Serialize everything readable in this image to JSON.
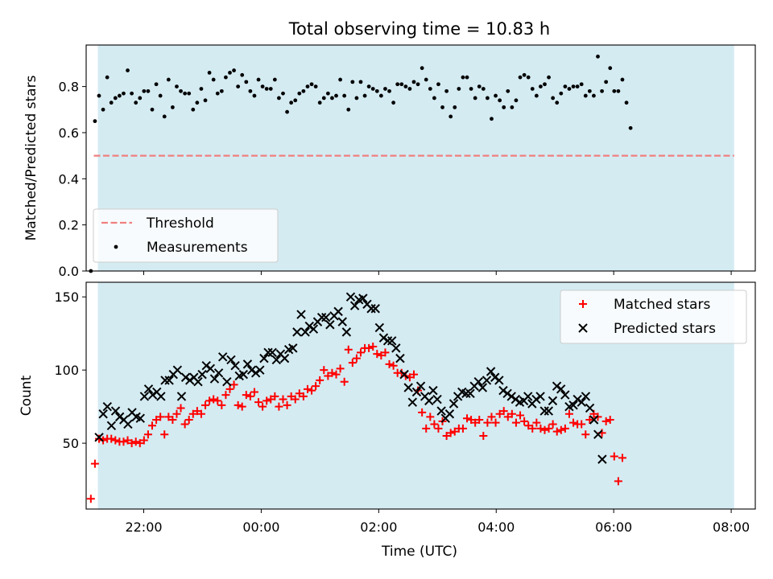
{
  "title": "Total observing time = 10.83 h",
  "xlabel": "Time (UTC)",
  "colors": {
    "band": "#add8e6",
    "threshold": "#f08080",
    "measurements": "#000000",
    "matched": "#ff0000",
    "predicted": "#000000"
  },
  "chart_data": [
    {
      "type": "scatter",
      "ylabel": "Matched/Predicted stars",
      "ylim": [
        0,
        0.98
      ],
      "yticks": [
        0.0,
        0.2,
        0.4,
        0.6,
        0.8
      ],
      "ytick_labels": [
        "0.0",
        "0.2",
        "0.4",
        "0.6",
        "0.8"
      ],
      "xlim_hours": [
        -2.98,
        8.41
      ],
      "xticks_hours": [
        -2,
        0,
        2,
        4,
        6,
        8
      ],
      "xtick_labels": [
        "22:00",
        "00:00",
        "02:00",
        "04:00",
        "06:00",
        "08:00"
      ],
      "observing_window_hours": [
        -2.78,
        8.05
      ],
      "grid": false,
      "legend": {
        "position": "lower-left",
        "entries": [
          "Threshold",
          "Measurements"
        ]
      },
      "threshold": {
        "name": "Threshold",
        "value": 0.5,
        "style": "dashed"
      },
      "series": [
        {
          "name": "Measurements",
          "x_start_hour": -2.9,
          "x_step_hour": 0.0696,
          "values": [
            0.0,
            0.65,
            0.76,
            0.7,
            0.84,
            0.73,
            0.75,
            0.76,
            0.77,
            0.87,
            0.77,
            0.73,
            0.75,
            0.78,
            0.78,
            0.7,
            0.81,
            0.76,
            0.67,
            0.83,
            0.71,
            0.8,
            0.78,
            0.77,
            0.77,
            0.7,
            0.73,
            0.79,
            0.74,
            0.86,
            0.83,
            0.77,
            0.78,
            0.84,
            0.86,
            0.87,
            0.8,
            0.85,
            0.82,
            0.78,
            0.76,
            0.83,
            0.8,
            0.79,
            0.79,
            0.83,
            0.75,
            0.77,
            0.69,
            0.73,
            0.74,
            0.77,
            0.78,
            0.8,
            0.81,
            0.8,
            0.73,
            0.75,
            0.77,
            0.75,
            0.76,
            0.83,
            0.76,
            0.7,
            0.82,
            0.75,
            0.82,
            0.76,
            0.8,
            0.79,
            0.78,
            0.76,
            0.79,
            0.78,
            0.73,
            0.81,
            0.81,
            0.8,
            0.79,
            0.82,
            0.81,
            0.88,
            0.83,
            0.79,
            0.75,
            0.81,
            0.71,
            0.78,
            0.67,
            0.71,
            0.79,
            0.84,
            0.84,
            0.79,
            0.75,
            0.8,
            0.79,
            0.75,
            0.66,
            0.76,
            0.74,
            0.71,
            0.78,
            0.71,
            0.74,
            0.84,
            0.85,
            0.84,
            0.79,
            0.76,
            0.8,
            0.81,
            0.84,
            0.75,
            0.73,
            0.77,
            0.8,
            0.79,
            0.8,
            0.8,
            0.81,
            0.76,
            0.78,
            0.76,
            0.93,
            0.78,
            0.82,
            0.88,
            0.78,
            0.78,
            0.83,
            0.73,
            0.62
          ]
        }
      ]
    },
    {
      "type": "scatter",
      "ylabel": "Count",
      "ylim": [
        5,
        160
      ],
      "yticks": [
        50,
        100,
        150
      ],
      "ytick_labels": [
        "50",
        "100",
        "150"
      ],
      "xlim_hours": [
        -2.98,
        8.41
      ],
      "xticks_hours": [
        -2,
        0,
        2,
        4,
        6,
        8
      ],
      "xtick_labels": [
        "22:00",
        "00:00",
        "02:00",
        "04:00",
        "06:00",
        "08:00"
      ],
      "observing_window_hours": [
        -2.78,
        8.05
      ],
      "grid": false,
      "legend": {
        "position": "top-right",
        "entries": [
          "Matched stars",
          "Predicted stars"
        ]
      },
      "series": [
        {
          "name": "Matched stars",
          "marker": "plus",
          "x_start_hour": -2.9,
          "x_step_hour": 0.0696,
          "values": [
            12,
            36,
            53,
            52,
            53,
            53,
            52,
            51,
            51,
            52,
            50,
            51,
            50,
            52,
            56,
            62,
            66,
            68,
            56,
            68,
            66,
            70,
            74,
            63,
            66,
            70,
            72,
            70,
            76,
            79,
            80,
            79,
            76,
            83,
            87,
            90,
            76,
            75,
            83,
            82,
            85,
            78,
            75,
            79,
            80,
            82,
            75,
            80,
            76,
            82,
            80,
            84,
            82,
            87,
            86,
            89,
            93,
            100,
            96,
            98,
            97,
            101,
            92,
            114,
            105,
            108,
            112,
            115,
            115,
            116,
            111,
            110,
            112,
            104,
            103,
            98,
            98,
            96,
            95,
            97,
            86,
            71,
            60,
            68,
            63,
            60,
            65,
            55,
            57,
            58,
            60,
            60,
            67,
            66,
            64,
            66,
            55,
            64,
            68,
            64,
            70,
            72,
            68,
            70,
            64,
            69,
            65,
            62,
            60,
            64,
            60,
            59,
            60,
            63,
            58,
            59,
            60,
            70,
            64,
            63,
            63,
            56,
            66,
            70,
            68,
            57,
            65,
            66,
            41,
            24,
            40
          ]
        },
        {
          "name": "Predicted stars",
          "marker": "x",
          "x_start_hour": -2.76,
          "x_step_hour": 0.0702,
          "values": [
            54,
            70,
            75,
            62,
            72,
            68,
            66,
            63,
            71,
            68,
            67,
            82,
            87,
            83,
            85,
            82,
            93,
            93,
            97,
            100,
            82,
            95,
            93,
            95,
            92,
            97,
            103,
            101,
            94,
            98,
            109,
            92,
            107,
            103,
            96,
            97,
            104,
            100,
            98,
            100,
            108,
            112,
            112,
            107,
            111,
            108,
            114,
            115,
            126,
            138,
            126,
            130,
            128,
            133,
            136,
            136,
            131,
            137,
            140,
            133,
            126,
            150,
            144,
            148,
            149,
            145,
            142,
            142,
            129,
            122,
            120,
            120,
            115,
            108,
            97,
            88,
            78,
            85,
            89,
            82,
            79,
            86,
            80,
            72,
            67,
            70,
            77,
            82,
            85,
            84,
            84,
            89,
            92,
            88,
            93,
            99,
            95,
            93,
            86,
            84,
            82,
            80,
            78,
            79,
            82,
            77,
            80,
            82,
            72,
            72,
            79,
            89,
            87,
            83,
            75,
            76,
            80,
            78,
            82,
            74,
            66,
            56,
            39
          ]
        }
      ]
    }
  ]
}
